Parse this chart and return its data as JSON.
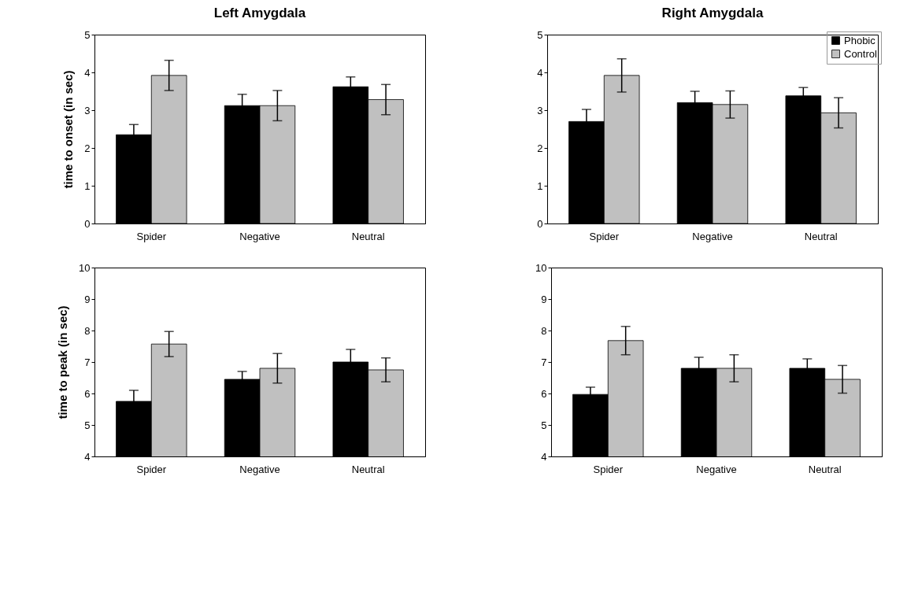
{
  "chart_data": [
    {
      "type": "bar",
      "title": "Left Amygdala",
      "ylabel": "time to onset (in sec)",
      "categories": [
        "Spider",
        "Negative",
        "Neutral"
      ],
      "ylim": [
        0,
        5
      ],
      "yticks": [
        0,
        1,
        2,
        3,
        4,
        5
      ],
      "series": [
        {
          "color": "#000000",
          "values": [
            2.35,
            3.12,
            3.62
          ],
          "errors": [
            0.27,
            0.3,
            0.26
          ]
        },
        {
          "color": "#c0c0c0",
          "values": [
            3.92,
            3.12,
            3.28
          ],
          "errors": [
            0.4,
            0.4,
            0.4
          ]
        }
      ]
    },
    {
      "type": "bar",
      "title": "Right Amygdala",
      "categories": [
        "Spider",
        "Negative",
        "Neutral"
      ],
      "ylim": [
        0,
        5
      ],
      "yticks": [
        0,
        1,
        2,
        3,
        4,
        5
      ],
      "legend": "top right",
      "series": [
        {
          "name": "Phobic",
          "color": "#000000",
          "values": [
            2.7,
            3.2,
            3.38
          ],
          "errors": [
            0.32,
            0.3,
            0.22
          ]
        },
        {
          "name": "Control",
          "color": "#c0c0c0",
          "values": [
            3.92,
            3.15,
            2.93
          ],
          "errors": [
            0.44,
            0.36,
            0.4
          ]
        }
      ]
    },
    {
      "type": "bar",
      "ylabel": "time to peak (in sec)",
      "categories": [
        "Spider",
        "Negative",
        "Neutral"
      ],
      "ylim": [
        4,
        10
      ],
      "yticks": [
        4,
        5,
        6,
        7,
        8,
        9,
        10
      ],
      "series": [
        {
          "color": "#000000",
          "values": [
            5.75,
            6.45,
            7.0
          ],
          "errors": [
            0.35,
            0.25,
            0.4
          ]
        },
        {
          "color": "#c0c0c0",
          "values": [
            7.57,
            6.8,
            6.75
          ],
          "errors": [
            0.4,
            0.47,
            0.38
          ]
        }
      ]
    },
    {
      "type": "bar",
      "categories": [
        "Spider",
        "Negative",
        "Neutral"
      ],
      "ylim": [
        4,
        10
      ],
      "yticks": [
        4,
        5,
        6,
        7,
        8,
        9,
        10
      ],
      "series": [
        {
          "color": "#000000",
          "values": [
            5.97,
            6.8,
            6.8
          ],
          "errors": [
            0.23,
            0.35,
            0.3
          ]
        },
        {
          "color": "#c0c0c0",
          "values": [
            7.68,
            6.8,
            6.45
          ],
          "errors": [
            0.45,
            0.43,
            0.44
          ]
        }
      ]
    }
  ]
}
